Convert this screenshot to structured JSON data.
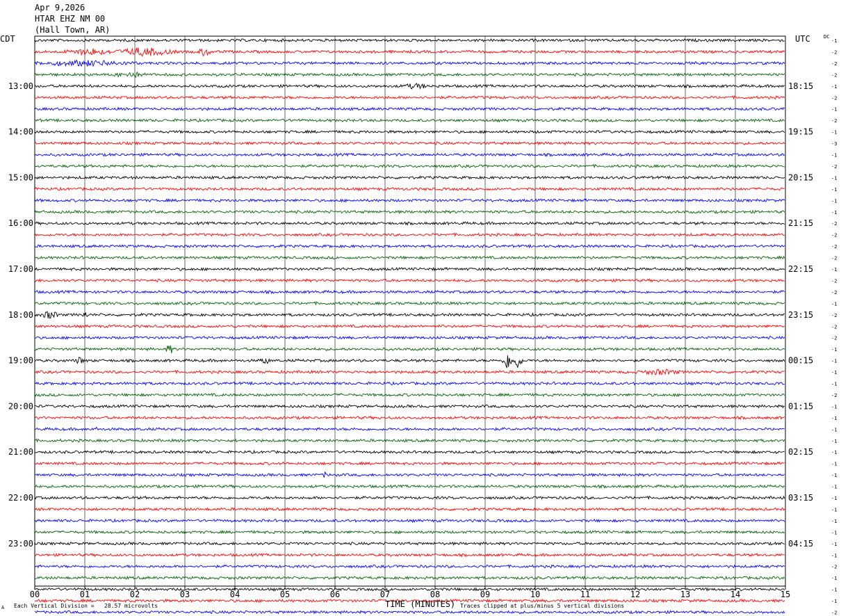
{
  "header": {
    "date": "Apr 9,2026",
    "station": "HTAR EHZ NM 00",
    "location": "(Hall Town, AR)"
  },
  "left_timezone": "CDT",
  "right_timezone": "UTC",
  "dc_label": "DC",
  "footer": {
    "scale_note": "Each Vertical Division =   28.57 microvolts",
    "clip_note": "Traces clipped at plus/minus 5 vertical divisions",
    "corner_mark": "A"
  },
  "colors": {
    "trace_cycle": [
      "#000000",
      "#ff0000",
      "#0000ff",
      "#006400"
    ],
    "grid": "#000000",
    "background": "#ffffff"
  },
  "chart_data": {
    "type": "line",
    "chart_kind": "helicorder",
    "xlabel": "TIME (MINUTES)",
    "x_ticks": [
      "00",
      "01",
      "02",
      "03",
      "04",
      "05",
      "06",
      "07",
      "08",
      "09",
      "10",
      "11",
      "12",
      "13",
      "14",
      "15"
    ],
    "xlim": [
      0,
      15
    ],
    "minutes_per_trace": 15,
    "left_hour_labels": [
      "13:00",
      "14:00",
      "15:00",
      "16:00",
      "17:00",
      "18:00",
      "19:00",
      "20:00",
      "21:00",
      "22:00",
      "23:00"
    ],
    "right_hour_labels": [
      "18:15",
      "19:15",
      "20:15",
      "21:15",
      "22:15",
      "23:15",
      "00:15",
      "01:15",
      "02:15",
      "03:15",
      "04:15"
    ],
    "label_start_trace": 4,
    "dc_offsets": [
      -1,
      -2,
      -2,
      -2,
      -1,
      -2,
      -1,
      -2,
      -1,
      -3,
      -1,
      -2,
      -1,
      -1,
      -1,
      -1,
      -2,
      -2,
      -2,
      -2,
      -1,
      -2,
      -2,
      -1,
      -2,
      -2,
      -2,
      -1,
      -1,
      -1,
      -1,
      -2,
      -1,
      -1,
      -1,
      -1,
      -1,
      -1,
      -1,
      -1,
      -1,
      -1,
      -1,
      -1,
      -1,
      -1,
      -2,
      -1,
      -1,
      -1,
      -2
    ],
    "events": [
      {
        "trace": 1,
        "minute": 1.1,
        "width": 0.6,
        "amp": 4
      },
      {
        "trace": 1,
        "minute": 2.2,
        "width": 0.7,
        "amp": 5
      },
      {
        "trace": 1,
        "minute": 3.4,
        "width": 0.15,
        "amp": 6
      },
      {
        "trace": 2,
        "minute": 1.0,
        "width": 1.2,
        "amp": 3
      },
      {
        "trace": 3,
        "minute": 1.9,
        "width": 0.4,
        "amp": 3
      },
      {
        "trace": 4,
        "minute": 7.6,
        "width": 0.3,
        "amp": 3
      },
      {
        "trace": 24,
        "minute": 0.3,
        "width": 0.2,
        "amp": 5
      },
      {
        "trace": 24,
        "minute": 1.0,
        "width": 0.1,
        "amp": 3
      },
      {
        "trace": 27,
        "minute": 2.7,
        "width": 0.1,
        "amp": 6
      },
      {
        "trace": 28,
        "minute": 0.9,
        "width": 0.1,
        "amp": 5
      },
      {
        "trace": 28,
        "minute": 4.6,
        "width": 0.12,
        "amp": 4
      },
      {
        "trace": 28,
        "minute": 9.45,
        "width": 0.12,
        "amp": 12
      },
      {
        "trace": 28,
        "minute": 9.65,
        "width": 0.12,
        "amp": 10
      },
      {
        "trace": 29,
        "minute": 12.5,
        "width": 0.5,
        "amp": 3
      },
      {
        "trace": 34,
        "minute": 1.2,
        "width": 0.05,
        "amp": 5
      },
      {
        "trace": 38,
        "minute": 5.8,
        "width": 0.05,
        "amp": 4
      }
    ]
  }
}
